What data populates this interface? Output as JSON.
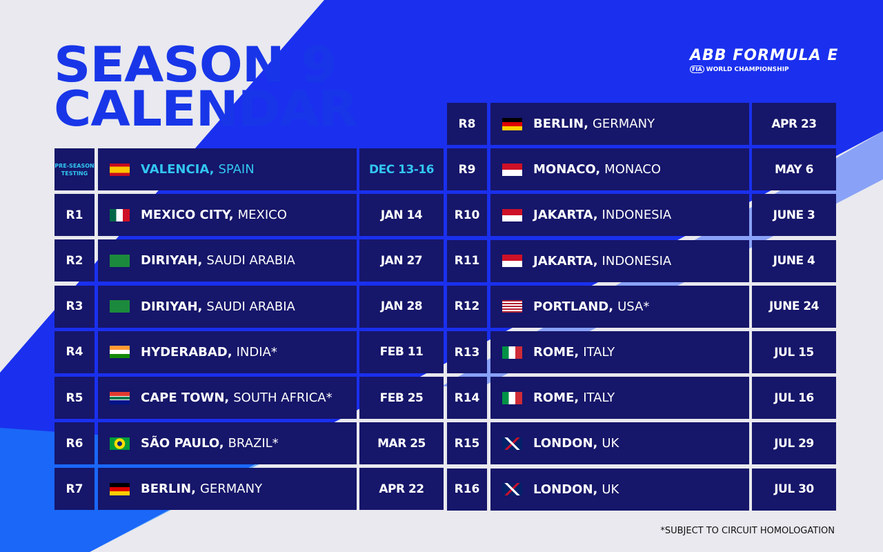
{
  "title": [
    "SEASON 9",
    "CALENDAR"
  ],
  "logo": {
    "line1": "ABB FORMULA E",
    "line2": "WORLD CHAMPIONSHIP",
    "fia": "FIA"
  },
  "colors": {
    "title": "#1836e8",
    "cell": "#16166a",
    "highlight": "#32c6f0",
    "band": "#1a30ee"
  },
  "left": [
    {
      "round": "PRE-SEASON TESTING",
      "city": "VALENCIA,",
      "country": "SPAIN",
      "date": "DEC 13-16",
      "flag": "spain",
      "pre": true
    },
    {
      "round": "R1",
      "city": "MEXICO CITY,",
      "country": "MEXICO",
      "date": "JAN 14",
      "flag": "mexico"
    },
    {
      "round": "R2",
      "city": "DIRIYAH,",
      "country": "SAUDI ARABIA",
      "date": "JAN 27",
      "flag": "saudi"
    },
    {
      "round": "R3",
      "city": "DIRIYAH,",
      "country": "SAUDI ARABIA",
      "date": "JAN 28",
      "flag": "saudi"
    },
    {
      "round": "R4",
      "city": "HYDERABAD,",
      "country": "INDIA*",
      "date": "FEB 11",
      "flag": "india"
    },
    {
      "round": "R5",
      "city": "CAPE TOWN,",
      "country": "SOUTH AFRICA*",
      "date": "FEB 25",
      "flag": "southafrica"
    },
    {
      "round": "R6",
      "city": "SÃO PAULO,",
      "country": "BRAZIL*",
      "date": "MAR 25",
      "flag": "brazil"
    },
    {
      "round": "R7",
      "city": "BERLIN,",
      "country": "GERMANY",
      "date": "APR 22",
      "flag": "germany"
    }
  ],
  "right": [
    {
      "round": "R8",
      "city": "BERLIN,",
      "country": "GERMANY",
      "date": "APR 23",
      "flag": "germany"
    },
    {
      "round": "R9",
      "city": "MONACO,",
      "country": "MONACO",
      "date": "MAY 6",
      "flag": "monaco"
    },
    {
      "round": "R10",
      "city": "JAKARTA,",
      "country": "INDONESIA",
      "date": "JUNE 3",
      "flag": "monaco"
    },
    {
      "round": "R11",
      "city": "JAKARTA,",
      "country": "INDONESIA",
      "date": "JUNE 4",
      "flag": "monaco"
    },
    {
      "round": "R12",
      "city": "PORTLAND,",
      "country": "USA*",
      "date": "JUNE 24",
      "flag": "usa"
    },
    {
      "round": "R13",
      "city": "ROME,",
      "country": "ITALY",
      "date": "JUL 15",
      "flag": "italy"
    },
    {
      "round": "R14",
      "city": "ROME,",
      "country": "ITALY",
      "date": "JUL 16",
      "flag": "italy"
    },
    {
      "round": "R15",
      "city": "LONDON,",
      "country": "UK",
      "date": "JUL 29",
      "flag": "uk"
    },
    {
      "round": "R16",
      "city": "LONDON,",
      "country": "UK",
      "date": "JUL 30",
      "flag": "uk"
    }
  ],
  "footnote": "*SUBJECT TO CIRCUIT HOMOLOGATION"
}
